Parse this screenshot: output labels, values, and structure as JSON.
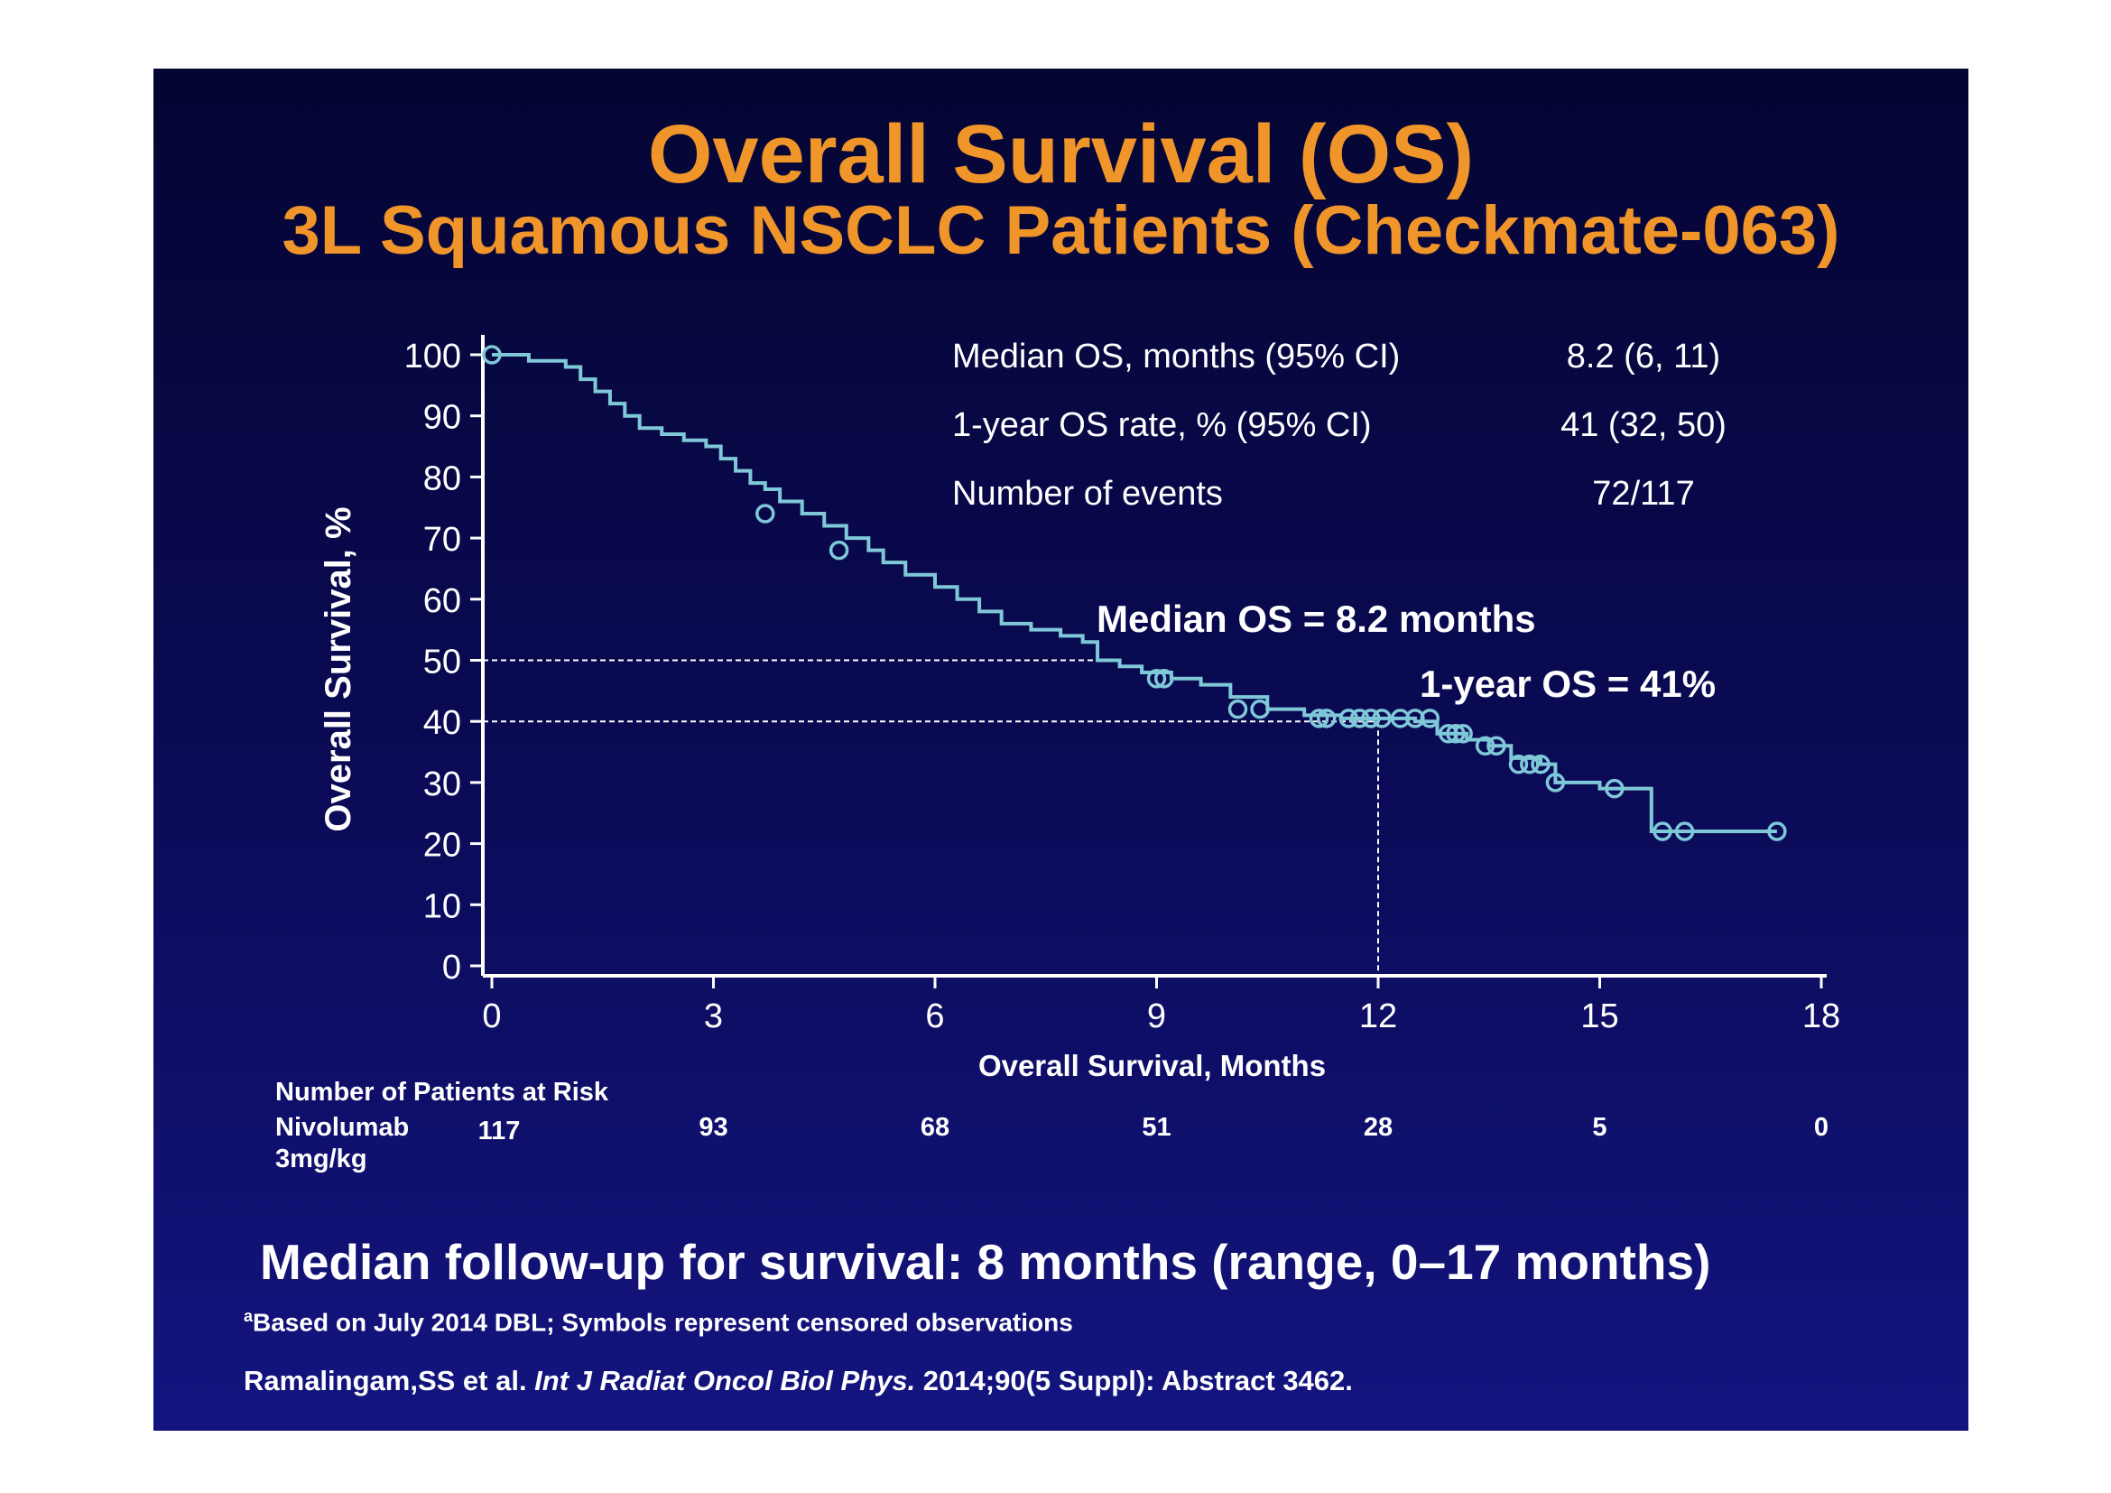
{
  "title": "Overall Survival (OS)",
  "subtitle": "3L Squamous NSCLC Patients (Checkmate-063)",
  "stats": [
    {
      "label": "Median OS, months (95% CI)",
      "value": "8.2 (6, 11)"
    },
    {
      "label": "1-year OS rate, % (95% CI)",
      "value": "41 (32, 50)"
    },
    {
      "label": "Number of events",
      "value": "72/117"
    }
  ],
  "annotations": {
    "median": "Median OS = 8.2 months",
    "one_year": "1-year OS = 41%"
  },
  "risk_table": {
    "header": "Number of Patients at Risk",
    "row_label_line1": "Nivolumab",
    "row_label_line2": "3mg/kg",
    "values": [
      "117",
      "93",
      "68",
      "51",
      "28",
      "5",
      "0"
    ]
  },
  "followup": "Median follow-up for survival: 8 months (range, 0–17 months)",
  "footnote": {
    "sup": "a",
    "text": "Based on July 2014 DBL;  Symbols represent censored observations"
  },
  "citation": {
    "authors": "Ramalingam,SS et al. ",
    "journal": "Int  J Radiat Oncol Biol Phys.",
    "rest": " 2014;90(5 Suppl): Abstract 3462."
  },
  "colors": {
    "background_top": "#050533",
    "background_bottom": "#141480",
    "title": "#f0952a",
    "curve": "#7fc8d8",
    "text": "#ffffff"
  },
  "chart_data": {
    "type": "line",
    "title": "",
    "xlabel": "Overall Survival, Months",
    "ylabel": "Overall Survival, %",
    "xlim": [
      0,
      18
    ],
    "ylim": [
      0,
      100
    ],
    "xticks": [
      0,
      3,
      6,
      9,
      12,
      15,
      18
    ],
    "yticks": [
      0,
      10,
      20,
      30,
      40,
      50,
      60,
      70,
      80,
      90,
      100
    ],
    "grid": false,
    "reference_lines": [
      {
        "y": 50,
        "x_end": 8.2
      },
      {
        "y": 40,
        "x_end": 12
      },
      {
        "x": 12,
        "y_end": 40
      }
    ],
    "series": [
      {
        "step": [
          [
            0,
            100
          ],
          [
            0.5,
            99
          ],
          [
            1.0,
            98
          ],
          [
            1.2,
            96
          ],
          [
            1.4,
            94
          ],
          [
            1.6,
            92
          ],
          [
            1.8,
            90
          ],
          [
            2.0,
            88
          ],
          [
            2.3,
            87
          ],
          [
            2.6,
            86
          ],
          [
            2.9,
            85
          ],
          [
            3.1,
            83
          ],
          [
            3.3,
            81
          ],
          [
            3.5,
            79
          ],
          [
            3.7,
            78
          ],
          [
            3.9,
            76
          ],
          [
            4.2,
            74
          ],
          [
            4.5,
            72
          ],
          [
            4.8,
            70
          ],
          [
            5.1,
            68
          ],
          [
            5.3,
            66
          ],
          [
            5.6,
            64
          ],
          [
            6.0,
            62
          ],
          [
            6.3,
            60
          ],
          [
            6.6,
            58
          ],
          [
            6.9,
            56
          ],
          [
            7.3,
            55
          ],
          [
            7.7,
            54
          ],
          [
            8.0,
            53
          ],
          [
            8.2,
            50
          ],
          [
            8.5,
            49
          ],
          [
            8.8,
            48
          ],
          [
            9.2,
            47
          ],
          [
            9.6,
            46
          ],
          [
            10.0,
            44
          ],
          [
            10.5,
            42
          ],
          [
            11.0,
            41
          ],
          [
            11.5,
            40.5
          ],
          [
            12.0,
            40.5
          ],
          [
            12.5,
            40
          ],
          [
            12.8,
            38
          ],
          [
            13.2,
            37
          ],
          [
            13.5,
            36
          ],
          [
            13.8,
            34
          ],
          [
            14.2,
            33
          ],
          [
            14.4,
            30
          ],
          [
            15.0,
            29
          ],
          [
            15.7,
            22
          ],
          [
            17.4,
            22
          ]
        ],
        "censored": [
          [
            0,
            100
          ],
          [
            3.7,
            74
          ],
          [
            4.7,
            68
          ],
          [
            9.0,
            47
          ],
          [
            9.1,
            47
          ],
          [
            10.1,
            42
          ],
          [
            10.4,
            42
          ],
          [
            11.2,
            40.5
          ],
          [
            11.3,
            40.5
          ],
          [
            11.6,
            40.5
          ],
          [
            11.75,
            40.5
          ],
          [
            11.9,
            40.5
          ],
          [
            12.05,
            40.5
          ],
          [
            12.3,
            40.5
          ],
          [
            12.5,
            40.5
          ],
          [
            12.7,
            40.5
          ],
          [
            12.95,
            38
          ],
          [
            13.05,
            38
          ],
          [
            13.15,
            38
          ],
          [
            13.45,
            36
          ],
          [
            13.6,
            36
          ],
          [
            13.9,
            33
          ],
          [
            14.05,
            33
          ],
          [
            14.2,
            33
          ],
          [
            14.4,
            30
          ],
          [
            15.2,
            29
          ],
          [
            15.85,
            22
          ],
          [
            16.15,
            22
          ],
          [
            17.4,
            22
          ]
        ]
      }
    ]
  }
}
